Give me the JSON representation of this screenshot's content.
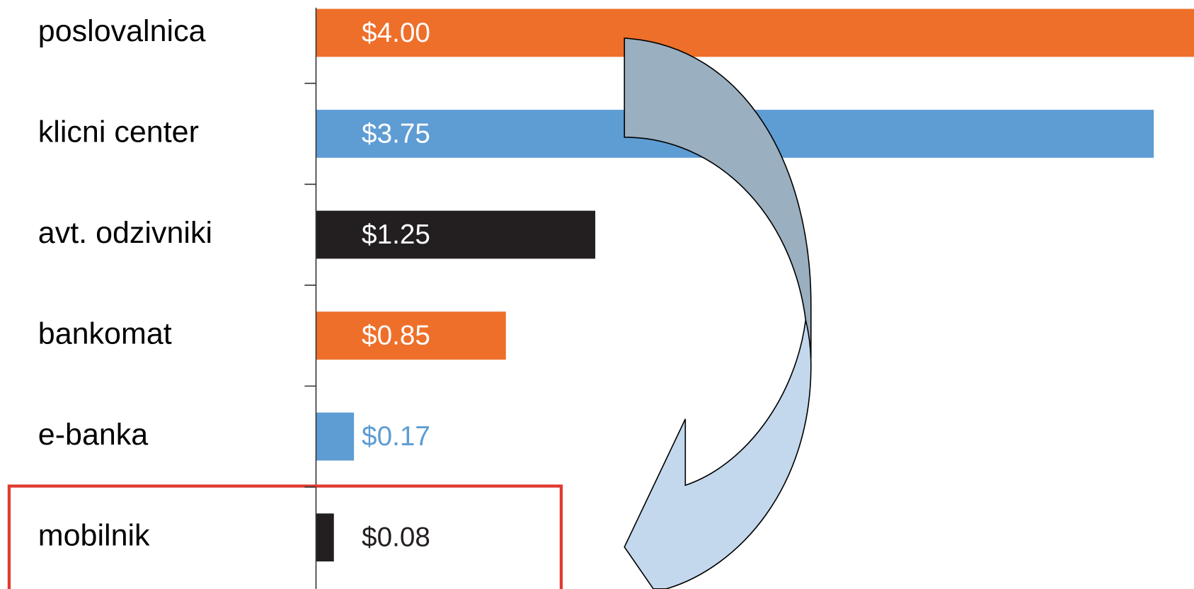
{
  "chart_data": {
    "type": "bar",
    "orientation": "horizontal",
    "categories": [
      "poslovalnica",
      "klicni center",
      "avt. odzivniki",
      "bankomat",
      "e-banka",
      "mobilnik"
    ],
    "values": [
      4.0,
      3.75,
      1.25,
      0.85,
      0.17,
      0.08
    ],
    "value_labels": [
      "$4.00",
      "$3.75",
      "$1.25",
      "$0.85",
      "$0.17",
      "$0.08"
    ],
    "colors": [
      "#ee6f2a",
      "#5e9cd4",
      "#231f20",
      "#ee6f2a",
      "#5e9cd4",
      "#231f20"
    ],
    "xlim": [
      0,
      3.93
    ]
  }
}
